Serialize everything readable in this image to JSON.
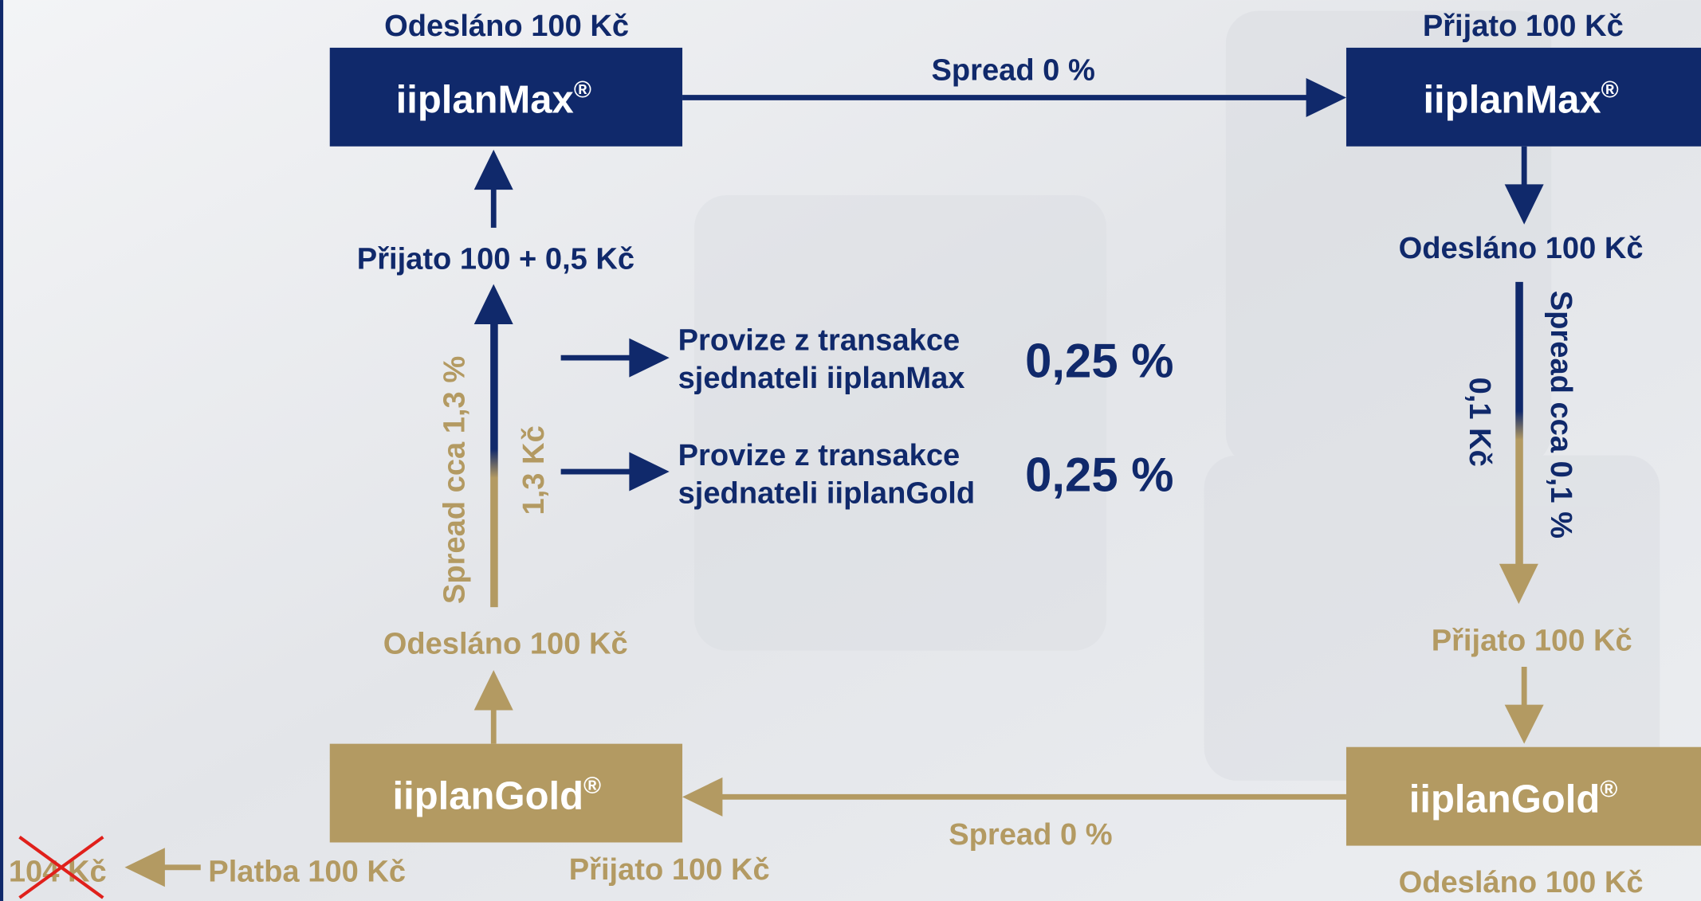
{
  "top_left": {
    "label": "Odesláno 100 Kč",
    "box": "iiplanMax",
    "reg": "®"
  },
  "top_right": {
    "label": "Přijato 100 Kč",
    "box": "iiplanMax",
    "reg": "®"
  },
  "top_arrow": "Spread 0 %",
  "right_column": {
    "sent": "Odesláno 100 Kč",
    "spread": "Spread cca 0,1 %",
    "amount": "0,1 Kč",
    "received": "Přijato 100 Kč"
  },
  "bottom_right": {
    "box": "iiplanGold",
    "reg": "®",
    "label": "Odesláno 100 Kč"
  },
  "bottom_arrow": "Spread 0 %",
  "bottom_left": {
    "box": "iiplanGold",
    "reg": "®",
    "label": "Přijato 100 Kč"
  },
  "left_column": {
    "sent": "Odesláno 100 Kč",
    "spread": "Spread cca 1,3 %",
    "amount": "1,3 Kč",
    "received": "Přijato 100 + 0,5 Kč"
  },
  "commissions": [
    {
      "line1": "Provize z transakce",
      "line2": "sjednateli iiplanMax",
      "rate": "0,25 %"
    },
    {
      "line1": "Provize z transakce",
      "line2": "sjednateli iiplanGold",
      "rate": "0,25 %"
    }
  ],
  "payment": {
    "label": "Platba 100 Kč",
    "crossed": "104 Kč"
  }
}
